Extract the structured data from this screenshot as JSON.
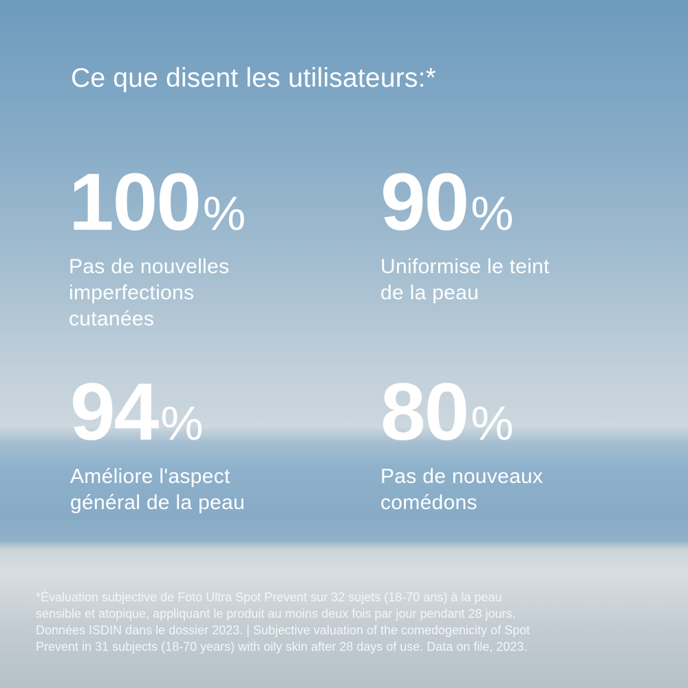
{
  "title": "Ce que disent les utilisateurs:*",
  "stats": [
    {
      "value": "100",
      "unit": "%",
      "label_lines": [
        "Pas de nouvelles",
        "imperfections",
        "cutanées"
      ]
    },
    {
      "value": "90",
      "unit": "%",
      "label_lines": [
        "Uniformise le teint",
        "de la peau"
      ]
    },
    {
      "value": "94",
      "unit": "%",
      "label_lines": [
        "Améliore l'aspect",
        "général de la peau"
      ]
    },
    {
      "value": "80",
      "unit": "%",
      "label_lines": [
        "Pas de nouveaux",
        "comédons"
      ]
    }
  ],
  "footnote_lines": [
    "*Évaluation subjective de Foto Ultra Spot Prevent sur 32 sujets (18-70 ans) à la peau",
    "sensible et atopique, appliquant le produit au moins deux fois par jour pendant 28 jours.",
    "Données ISDIN dans le dossier 2023. | Subjective valuation of the comedogenicity of Spot",
    "Prevent in 31 subjects (18-70 years) with oily skin after 28 days of use. Data on file, 2023."
  ],
  "colors": {
    "text": "#ffffff",
    "sky_top": "#6d9bbd",
    "sea": "#87aac6",
    "ice": "#d0d6da"
  }
}
